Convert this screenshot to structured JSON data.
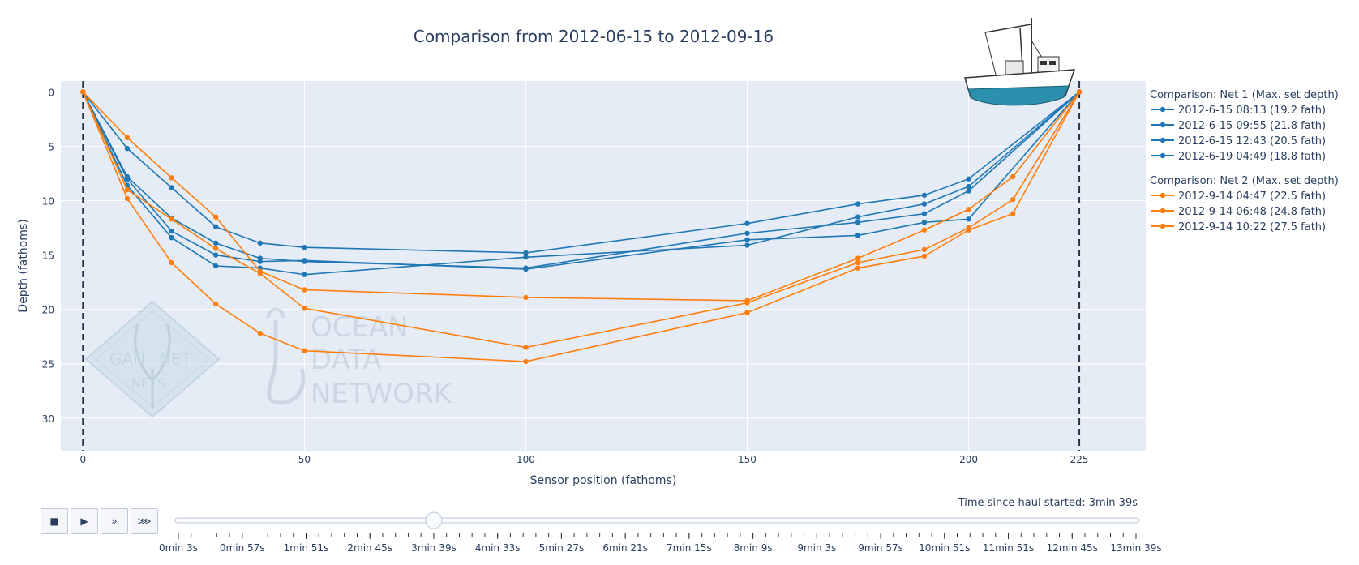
{
  "chart_data": {
    "type": "line",
    "title": "Comparison from 2012-06-15 to 2012-09-16",
    "xlabel": "Sensor position (fathoms)",
    "ylabel": "Depth (fathoms)",
    "xlim": [
      -5,
      240
    ],
    "ylim": [
      33,
      -1
    ],
    "y_reversed": true,
    "grid": true,
    "x_ticks": [
      0,
      50,
      100,
      150,
      200,
      225
    ],
    "y_ticks": [
      0,
      5,
      10,
      15,
      20,
      25,
      30
    ],
    "vlines": [
      0,
      225
    ],
    "legend_position": "right",
    "groups": [
      {
        "title": "Comparison: Net 1 (Max. set depth)",
        "color": "#1f77b4",
        "series": [
          {
            "name": "2012-6-15 08:13 (19.2 fath)",
            "x": [
              0,
              10,
              20,
              30,
              40,
              50,
              100,
              150,
              175,
              190,
              200,
              225
            ],
            "y": [
              0,
              5.2,
              8.8,
              12.4,
              13.9,
              14.3,
              14.8,
              12.1,
              10.3,
              9.5,
              8.0,
              0
            ]
          },
          {
            "name": "2012-6-15 09:55 (21.8 fath)",
            "x": [
              0,
              10,
              20,
              30,
              40,
              50,
              100,
              150,
              175,
              190,
              200,
              225
            ],
            "y": [
              0,
              7.8,
              11.6,
              13.9,
              15.3,
              15.6,
              16.2,
              13.0,
              12.0,
              11.2,
              9.1,
              0
            ]
          },
          {
            "name": "2012-6-15 12:43 (20.5 fath)",
            "x": [
              0,
              10,
              20,
              30,
              40,
              50,
              100,
              150,
              175,
              190,
              200,
              225
            ],
            "y": [
              0,
              8.0,
              12.8,
              15.0,
              15.6,
              15.5,
              16.3,
              13.6,
              13.2,
              12.0,
              11.7,
              0
            ]
          },
          {
            "name": "2012-6-19 04:49 (18.8 fath)",
            "x": [
              0,
              10,
              20,
              30,
              40,
              50,
              100,
              150,
              175,
              190,
              200,
              225
            ],
            "y": [
              0,
              8.6,
              13.4,
              16.0,
              16.2,
              16.8,
              15.2,
              14.1,
              11.5,
              10.3,
              8.7,
              0
            ]
          }
        ]
      },
      {
        "title": "Comparison: Net 2 (Max. set depth)",
        "color": "#ff7f0e",
        "series": [
          {
            "name": "2012-9-14 04:47 (22.5 fath)",
            "x": [
              0,
              10,
              20,
              30,
              40,
              50,
              100,
              150,
              175,
              190,
              200,
              210,
              225
            ],
            "y": [
              0,
              4.2,
              7.9,
              11.5,
              16.5,
              18.2,
              18.9,
              19.2,
              15.3,
              12.7,
              10.8,
              7.8,
              0
            ]
          },
          {
            "name": "2012-9-14 06:48 (24.8 fath)",
            "x": [
              0,
              10,
              20,
              30,
              40,
              50,
              100,
              150,
              175,
              190,
              200,
              210,
              225
            ],
            "y": [
              0,
              9.0,
              11.7,
              14.4,
              16.7,
              19.9,
              23.5,
              19.4,
              15.7,
              14.5,
              12.5,
              9.9,
              0
            ]
          },
          {
            "name": "2012-9-14 10:22 (27.5 fath)",
            "x": [
              0,
              10,
              20,
              30,
              40,
              50,
              100,
              150,
              175,
              190,
              200,
              210,
              225
            ],
            "y": [
              0,
              9.8,
              15.7,
              19.5,
              22.2,
              23.8,
              24.8,
              20.3,
              16.2,
              15.1,
              12.7,
              11.2,
              0
            ]
          }
        ]
      }
    ]
  },
  "watermark": {
    "ocean_data_network": [
      "OCEAN",
      "DATA",
      "NETWORK"
    ],
    "gannet_nets": [
      "GAN",
      "NET",
      "NETS"
    ]
  },
  "animation": {
    "time_label": "Time since haul started: 3min 39s",
    "controls": [
      "■",
      "▶",
      "»",
      "⋙"
    ],
    "slider_labels": [
      "0min 3s",
      "0min 57s",
      "1min 51s",
      "2min 45s",
      "3min 39s",
      "4min 33s",
      "5min 27s",
      "6min 21s",
      "7min 15s",
      "8min 9s",
      "9min 3s",
      "9min 57s",
      "10min 51s",
      "11min 51s",
      "12min 45s",
      "13min 39s"
    ],
    "slider_value": "3min 39s"
  },
  "boat_icon": "fishing-boat-icon"
}
